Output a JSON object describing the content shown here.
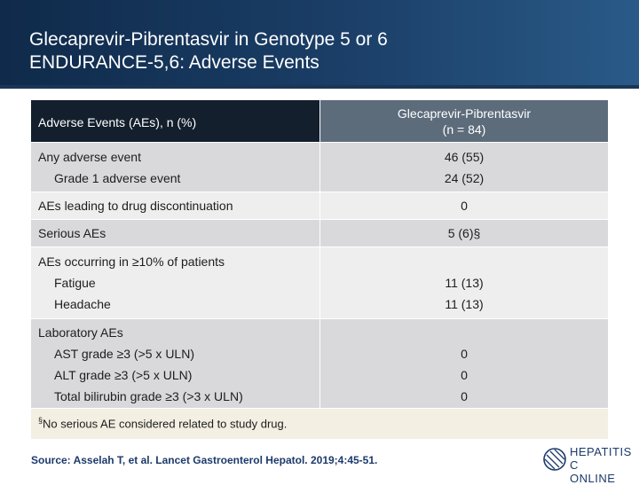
{
  "title": {
    "line1": "Glecaprevir-Pibrentasvir in Genotype 5 or 6",
    "line2": "ENDURANCE-5,6: Adverse Events"
  },
  "table": {
    "header_left": "Adverse Events (AEs), n (%)",
    "header_right_line1": "Glecaprevir-Pibrentasvir",
    "header_right_line2": "(n = 84)",
    "rows": [
      {
        "label": "Any adverse event",
        "value": "46 (55)"
      },
      {
        "label": "Grade 1 adverse event",
        "value": "24 (52)"
      },
      {
        "label": "AEs leading to drug discontinuation",
        "value": "0"
      },
      {
        "label": "Serious AEs",
        "value": "5 (6)§"
      },
      {
        "label": "AEs occurring in ≥10% of patients",
        "value": ""
      },
      {
        "label": "Fatigue",
        "value": "11 (13)"
      },
      {
        "label": "Headache",
        "value": "11 (13)"
      },
      {
        "label": "Laboratory AEs",
        "value": ""
      },
      {
        "label": "AST grade ≥3 (>5 x ULN)",
        "value": "0"
      },
      {
        "label": "ALT grade ≥3 (>5 x ULN)",
        "value": "0"
      },
      {
        "label": "Total bilirubin grade ≥3 (>3 x ULN)",
        "value": "0"
      }
    ],
    "footnote_mark": "§",
    "footnote": "No serious AE considered related to study drug."
  },
  "source": "Source: Asselah T, et al. Lancet Gastroenterol Hepatol. 2019;4:45-51.",
  "logo": {
    "line1": "HEPATITIS C",
    "line2": "ONLINE"
  }
}
